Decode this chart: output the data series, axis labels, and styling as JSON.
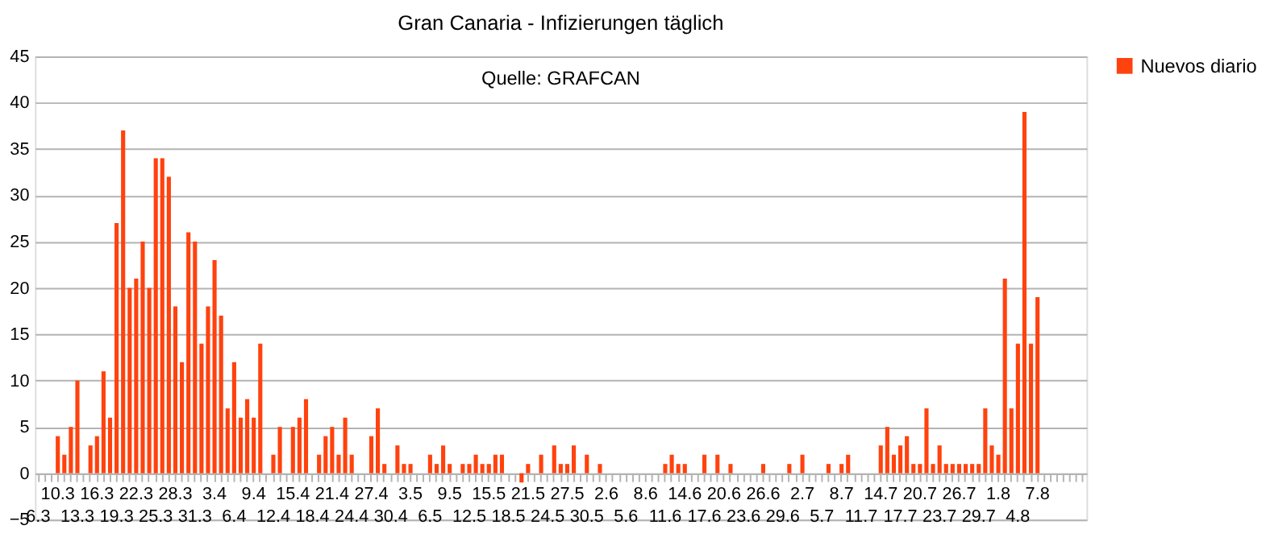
{
  "chart_data": {
    "type": "bar",
    "title": "Gran Canaria - Infizierungen täglich",
    "annotations": [
      "Quelle: GRAFCAN"
    ],
    "categories": [
      "6.3",
      null,
      null,
      "10.3",
      null,
      null,
      "13.3",
      null,
      null,
      "16.3",
      null,
      null,
      "19.3",
      null,
      null,
      "22.3",
      null,
      null,
      "25.3",
      null,
      null,
      "28.3",
      null,
      null,
      "31.3",
      null,
      null,
      "3.4",
      null,
      null,
      "6.4",
      null,
      null,
      "9.4",
      null,
      null,
      "12.4",
      null,
      null,
      "15.4",
      null,
      null,
      "18.4",
      null,
      null,
      "21.4",
      null,
      null,
      "24.4",
      null,
      null,
      "27.4",
      null,
      null,
      "30.4",
      null,
      null,
      "3.5",
      null,
      null,
      "6.5",
      null,
      null,
      "9.5",
      null,
      null,
      "12.5",
      null,
      null,
      "15.5",
      null,
      null,
      "18.5",
      null,
      null,
      "21.5",
      null,
      null,
      "24.5",
      null,
      null,
      "27.5",
      null,
      null,
      "30.5",
      null,
      null,
      "2.6",
      null,
      null,
      "5.6",
      null,
      null,
      "8.6",
      null,
      null,
      "11.6",
      null,
      null,
      "14.6",
      null,
      null,
      "17.6",
      null,
      null,
      "20.6",
      null,
      null,
      "23.6",
      null,
      null,
      "26.6",
      null,
      null,
      "29.6",
      null,
      null,
      "2.7",
      null,
      null,
      "5.7",
      null,
      null,
      "8.7",
      null,
      null,
      "11.7",
      null,
      null,
      "14.7",
      null,
      null,
      "17.7",
      null,
      null,
      "20.7",
      null,
      null,
      "23.7",
      null,
      null,
      "26.7",
      null,
      null,
      "29.7",
      null,
      null,
      "1.8",
      null,
      null,
      "4.8",
      null,
      null,
      "7.8",
      null,
      null,
      null,
      null,
      null,
      null,
      null
    ],
    "series": [
      {
        "name": "Nuevos diario",
        "color": "#ff420e",
        "values": [
          0,
          0,
          0,
          4,
          2,
          5,
          10,
          0,
          3,
          4,
          11,
          6,
          27,
          37,
          20,
          21,
          25,
          20,
          34,
          34,
          32,
          18,
          12,
          26,
          25,
          14,
          18,
          23,
          17,
          7,
          12,
          6,
          8,
          6,
          14,
          0,
          2,
          5,
          0,
          5,
          6,
          8,
          0,
          2,
          4,
          5,
          2,
          6,
          2,
          0,
          0,
          4,
          7,
          1,
          0,
          3,
          1,
          1,
          0,
          0,
          2,
          1,
          3,
          1,
          0,
          1,
          1,
          2,
          1,
          1,
          2,
          2,
          0,
          0,
          -1,
          1,
          0,
          2,
          0,
          3,
          1,
          1,
          3,
          0,
          2,
          0,
          1,
          0,
          0,
          0,
          0,
          0,
          0,
          0,
          0,
          0,
          1,
          2,
          1,
          1,
          0,
          0,
          2,
          0,
          2,
          0,
          1,
          0,
          0,
          0,
          0,
          1,
          0,
          0,
          0,
          1,
          0,
          2,
          0,
          0,
          0,
          1,
          0,
          1,
          2,
          0,
          0,
          0,
          0,
          3,
          5,
          2,
          3,
          4,
          1,
          1,
          7,
          1,
          3,
          1,
          1,
          1,
          1,
          1,
          1,
          7,
          3,
          2,
          21,
          7,
          14,
          39,
          14,
          19,
          null,
          null,
          null,
          null,
          null,
          null,
          null
        ]
      }
    ],
    "ylim": [
      -5,
      45
    ],
    "yticks": [
      -5,
      0,
      5,
      10,
      15,
      20,
      25,
      30,
      35,
      40,
      45
    ],
    "grid": "y",
    "legend": "right"
  }
}
